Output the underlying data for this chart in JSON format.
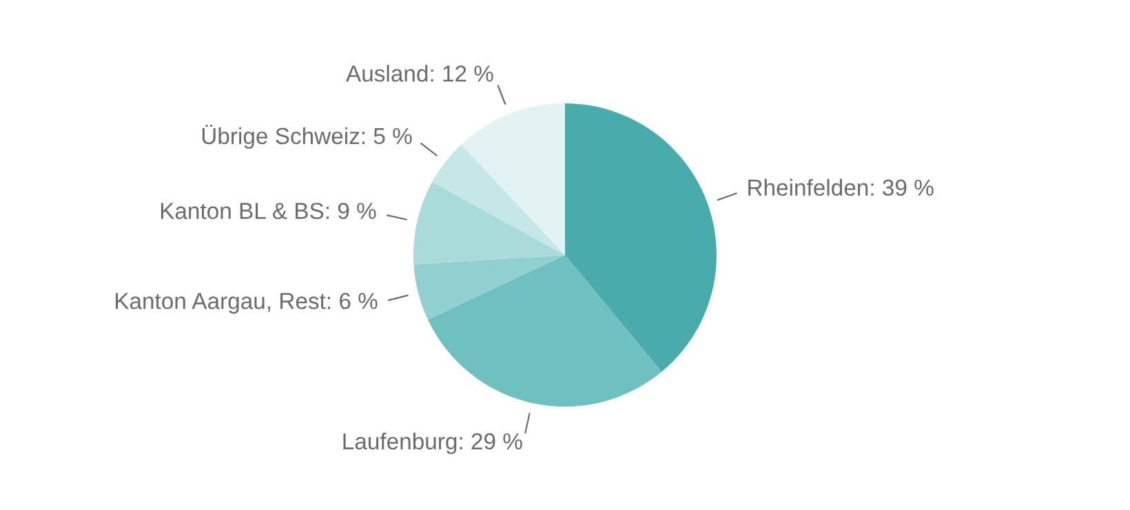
{
  "chart_data": {
    "type": "pie",
    "categories": [
      "Rheinfelden",
      "Laufenburg",
      "Kanton Aargau, Rest",
      "Kanton BL & BS",
      "Übrige Schweiz",
      "Ausland"
    ],
    "values": [
      39,
      29,
      6,
      9,
      5,
      12
    ],
    "value_labels": [
      "39 %",
      "29 %",
      "6 %",
      "9 %",
      "5 %",
      "12 %"
    ],
    "colors": [
      "#4aabad",
      "#6fc0c0",
      "#91d0d0",
      "#a9dbdb",
      "#c6e7e7",
      "#e3f2f2"
    ],
    "legend": false
  }
}
